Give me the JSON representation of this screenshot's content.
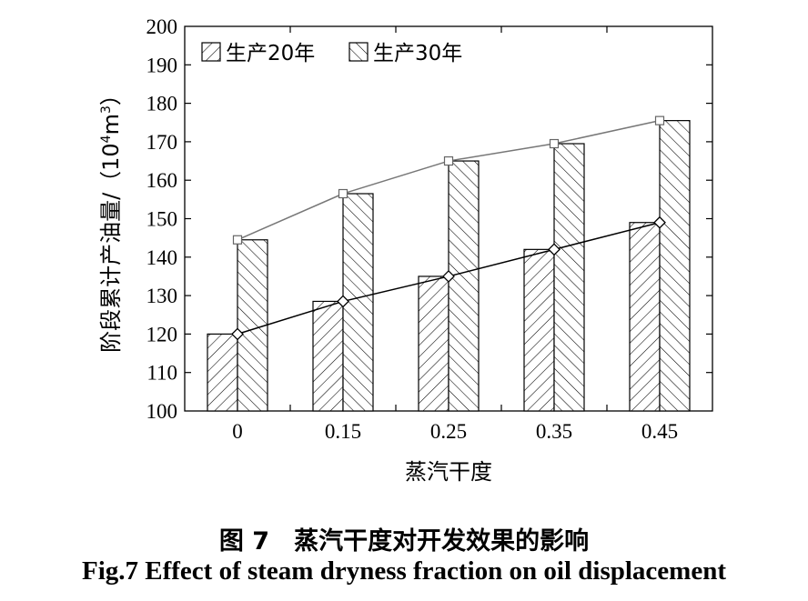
{
  "chart_data": {
    "type": "bar",
    "categories": [
      "0",
      "0.15",
      "0.25",
      "0.35",
      "0.45"
    ],
    "series": [
      {
        "name": "生产20年",
        "values": [
          120,
          128.5,
          135,
          142,
          149
        ],
        "line_color": "#000000"
      },
      {
        "name": "生产30年",
        "values": [
          144.5,
          156.5,
          165,
          169.5,
          175.5
        ],
        "line_color": "#777777"
      }
    ],
    "xlabel": "蒸汽干度",
    "ylabel_main": "阶段累计产油量/（10",
    "ylabel_sup1": "4",
    "ylabel_mid": "m",
    "ylabel_sup2": "3",
    "ylabel_end": "）",
    "ylim": [
      100,
      200
    ],
    "yticks": [
      "100",
      "110",
      "120",
      "130",
      "140",
      "150",
      "160",
      "170",
      "180",
      "190",
      "200"
    ],
    "grid": false,
    "legend_position": "top-left"
  },
  "caption": {
    "cn": "图 7　蒸汽干度对开发效果的影响",
    "en": "Fig.7 Effect of steam dryness fraction on oil displacement"
  }
}
